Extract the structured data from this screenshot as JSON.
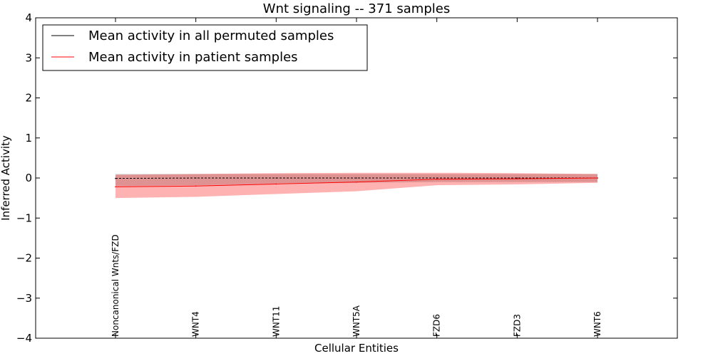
{
  "chart_data": {
    "type": "line",
    "title": "Wnt signaling -- 371 samples",
    "xlabel": "Cellular Entities",
    "ylabel": "Inferred Activity",
    "ylim": [
      -4,
      4
    ],
    "yticks": [
      -4,
      -3,
      -2,
      -1,
      0,
      1,
      2,
      3,
      4
    ],
    "ytick_labels": [
      "−4",
      "−3",
      "−2",
      "−1",
      "0",
      "1",
      "2",
      "3",
      "4"
    ],
    "categories": [
      "Noncanonical Wnts/FZD",
      "WNT4",
      "WNT11",
      "WNT5A",
      "FZD6",
      "FZD3",
      "WNT6"
    ],
    "grid": false,
    "legend_position": "top-left",
    "series": [
      {
        "name": "Mean activity in all permuted samples",
        "color": "#000000",
        "values": [
          -0.01,
          0.0,
          0.0,
          0.0,
          0.0,
          0.0,
          0.0
        ],
        "band_low": [
          -0.2,
          -0.18,
          -0.14,
          -0.12,
          -0.1,
          -0.1,
          -0.1
        ],
        "band_high": [
          0.1,
          0.1,
          0.1,
          0.1,
          0.1,
          0.1,
          0.1
        ],
        "band_color": "#000000"
      },
      {
        "name": "Mean activity in patient samples",
        "color": "#ff0000",
        "values": [
          -0.22,
          -0.2,
          -0.15,
          -0.1,
          -0.03,
          -0.02,
          0.0
        ],
        "band_low": [
          -0.5,
          -0.47,
          -0.4,
          -0.33,
          -0.18,
          -0.16,
          -0.12
        ],
        "band_high": [
          0.08,
          0.1,
          0.12,
          0.13,
          0.13,
          0.12,
          0.1
        ],
        "band_color": "#ff0000"
      }
    ]
  }
}
